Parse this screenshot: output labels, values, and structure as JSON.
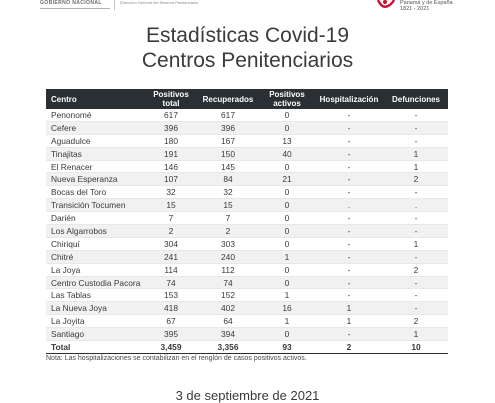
{
  "header": {
    "gov_label": "GOBIERNO NACIONAL",
    "dept_label": "Dirección General del Sistema Penitenciario",
    "centenario_line": "Panamá y de España",
    "centenario_years": "1821 - 2021"
  },
  "title": {
    "line1": "Estadísticas Covid-19",
    "line2": "Centros Penitenciarios"
  },
  "table": {
    "headers": {
      "centro": "Centro",
      "positivos_total": "Positivos total",
      "recuperados": "Recuperados",
      "positivos_activos": "Positivos activos",
      "hospitalizacion": "Hospitalización",
      "defunciones": "Defunciones"
    },
    "rows": [
      {
        "centro": "Penonomé",
        "positivos_total": "617",
        "recuperados": "617",
        "positivos_activos": "0",
        "hospitalizacion": "-",
        "defunciones": "-"
      },
      {
        "centro": "Cefere",
        "positivos_total": "396",
        "recuperados": "396",
        "positivos_activos": "0",
        "hospitalizacion": "-",
        "defunciones": "-"
      },
      {
        "centro": "Aguadulce",
        "positivos_total": "180",
        "recuperados": "167",
        "positivos_activos": "13",
        "hospitalizacion": "-",
        "defunciones": "-"
      },
      {
        "centro": "Tinajitas",
        "positivos_total": "191",
        "recuperados": "150",
        "positivos_activos": "40",
        "hospitalizacion": "-",
        "defunciones": "1"
      },
      {
        "centro": "El Renacer",
        "positivos_total": "146",
        "recuperados": "145",
        "positivos_activos": "0",
        "hospitalizacion": "-",
        "defunciones": "1"
      },
      {
        "centro": "Nueva Esperanza",
        "positivos_total": "107",
        "recuperados": "84",
        "positivos_activos": "21",
        "hospitalizacion": "-",
        "defunciones": "2"
      },
      {
        "centro": "Bocas del Toro",
        "positivos_total": "32",
        "recuperados": "32",
        "positivos_activos": "0",
        "hospitalizacion": "-",
        "defunciones": "-"
      },
      {
        "centro": "Transición Tocumen",
        "positivos_total": "15",
        "recuperados": "15",
        "positivos_activos": "0",
        "hospitalizacion": ".",
        "defunciones": "."
      },
      {
        "centro": "Darién",
        "positivos_total": "7",
        "recuperados": "7",
        "positivos_activos": "0",
        "hospitalizacion": "-",
        "defunciones": "-"
      },
      {
        "centro": "Los Algarrobos",
        "positivos_total": "2",
        "recuperados": "2",
        "positivos_activos": "0",
        "hospitalizacion": "-",
        "defunciones": "-"
      },
      {
        "centro": "Chiriquí",
        "positivos_total": "304",
        "recuperados": "303",
        "positivos_activos": "0",
        "hospitalizacion": "-",
        "defunciones": "1"
      },
      {
        "centro": "Chitré",
        "positivos_total": "241",
        "recuperados": "240",
        "positivos_activos": "1",
        "hospitalizacion": "-",
        "defunciones": "-"
      },
      {
        "centro": "La Joya",
        "positivos_total": "114",
        "recuperados": "112",
        "positivos_activos": "0",
        "hospitalizacion": "-",
        "defunciones": "2"
      },
      {
        "centro": "Centro Custodia Pacora",
        "positivos_total": "74",
        "recuperados": "74",
        "positivos_activos": "0",
        "hospitalizacion": "-",
        "defunciones": "-"
      },
      {
        "centro": "Las Tablas",
        "positivos_total": "153",
        "recuperados": "152",
        "positivos_activos": "1",
        "hospitalizacion": "-",
        "defunciones": "-"
      },
      {
        "centro": "La Nueva Joya",
        "positivos_total": "418",
        "recuperados": "402",
        "positivos_activos": "16",
        "hospitalizacion": "1",
        "defunciones": "-"
      },
      {
        "centro": "La Joyita",
        "positivos_total": "67",
        "recuperados": "64",
        "positivos_activos": "1",
        "hospitalizacion": "1",
        "defunciones": "2"
      },
      {
        "centro": "Santiago",
        "positivos_total": "395",
        "recuperados": "394",
        "positivos_activos": "0",
        "hospitalizacion": "-",
        "defunciones": "1"
      }
    ],
    "total": {
      "centro": "Total",
      "positivos_total": "3,459",
      "recuperados": "3,356",
      "positivos_activos": "93",
      "hospitalizacion": "2",
      "defunciones": "10"
    }
  },
  "nota": "Nota: Las hospitalizaciones se contabilizan en el renglón de casos positivos activos.",
  "date": "3 de septiembre de 2021",
  "colors": {
    "header_bg": "#2a2f33",
    "row_alt": "#f1f1f1",
    "logo_accent": "#c8102e"
  }
}
